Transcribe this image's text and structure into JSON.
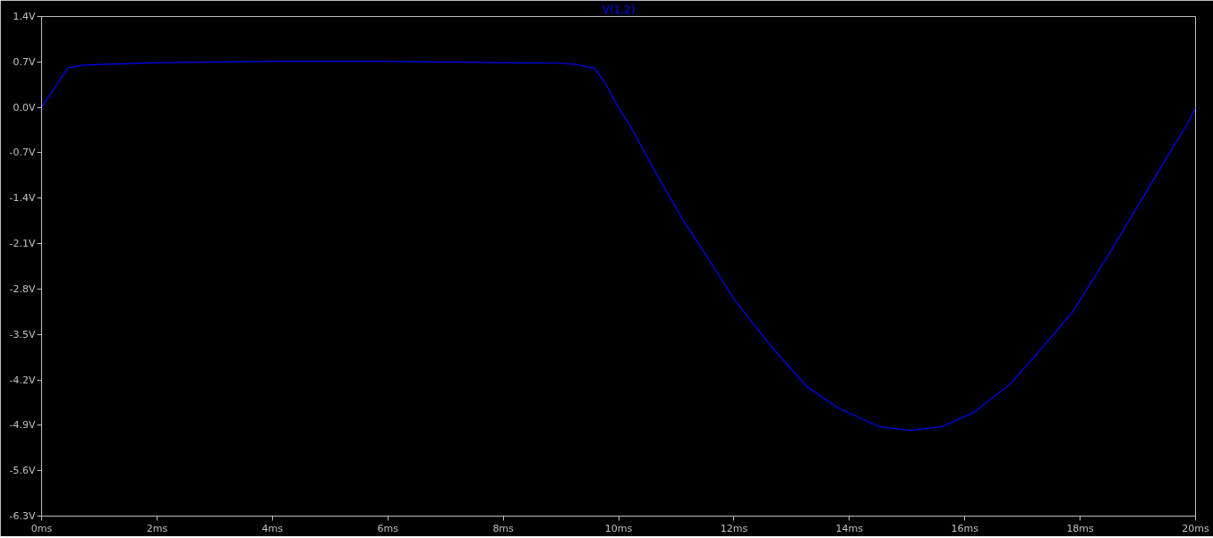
{
  "chart_data": {
    "type": "line",
    "x": [
      0,
      0.2,
      0.38,
      0.46,
      0.71,
      1,
      2,
      3,
      4,
      5,
      6,
      7,
      8,
      9,
      9.28,
      9.59,
      9.77,
      9.97,
      10.25,
      10.62,
      11.1,
      11.48,
      12.03,
      12.65,
      13.27,
      13.82,
      14.51,
      15.06,
      15.61,
      16.16,
      16.78,
      17.26,
      17.88,
      18.5,
      18.98,
      19.53,
      19.87,
      20
    ],
    "series": [
      {
        "name": "V(1,2)",
        "color": "#0000ff",
        "values": [
          0,
          0.27,
          0.51,
          0.61,
          0.65,
          0.66,
          0.69,
          0.7,
          0.71,
          0.71,
          0.71,
          0.7,
          0.69,
          0.68,
          0.66,
          0.6,
          0.37,
          0.04,
          -0.36,
          -0.97,
          -1.71,
          -2.23,
          -2.99,
          -3.69,
          -4.31,
          -4.64,
          -4.92,
          -4.98,
          -4.92,
          -4.7,
          -4.27,
          -3.79,
          -3.14,
          -2.26,
          -1.55,
          -0.73,
          -0.24,
          0
        ]
      }
    ],
    "xlim": [
      0,
      20
    ],
    "ylim": [
      -6.3,
      1.4
    ],
    "xticks": [
      {
        "value": 0,
        "label": "0ms"
      },
      {
        "value": 2,
        "label": "2ms"
      },
      {
        "value": 4,
        "label": "4ms"
      },
      {
        "value": 6,
        "label": "6ms"
      },
      {
        "value": 8,
        "label": "8ms"
      },
      {
        "value": 10,
        "label": "10ms"
      },
      {
        "value": 12,
        "label": "12ms"
      },
      {
        "value": 14,
        "label": "14ms"
      },
      {
        "value": 16,
        "label": "16ms"
      },
      {
        "value": 18,
        "label": "18ms"
      },
      {
        "value": 20,
        "label": "20ms"
      }
    ],
    "yticks": [
      {
        "value": 1.4,
        "label": "1.4V"
      },
      {
        "value": 0.7,
        "label": "0.7V"
      },
      {
        "value": 0.0,
        "label": "0.0V"
      },
      {
        "value": -0.7,
        "label": "-0.7V"
      },
      {
        "value": -1.4,
        "label": "-1.4V"
      },
      {
        "value": -2.1,
        "label": "-2.1V"
      },
      {
        "value": -2.8,
        "label": "-2.8V"
      },
      {
        "value": -3.5,
        "label": "-3.5V"
      },
      {
        "value": -4.2,
        "label": "-4.2V"
      },
      {
        "value": -4.9,
        "label": "-4.9V"
      },
      {
        "value": -5.6,
        "label": "-5.6V"
      },
      {
        "value": -6.3,
        "label": "-6.3V"
      }
    ]
  }
}
